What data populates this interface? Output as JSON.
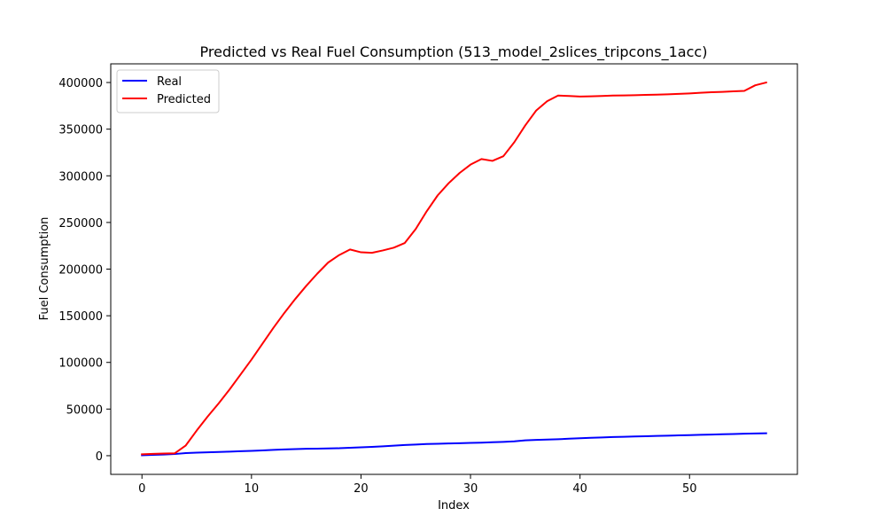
{
  "chart_data": {
    "type": "line",
    "title": "Predicted vs Real Fuel Consumption (513_model_2slices_tripcons_1acc)",
    "xlabel": "Index",
    "ylabel": "Fuel Consumption",
    "xlim": [
      -2.85,
      59.85
    ],
    "ylim": [
      -20000,
      420000
    ],
    "xticks": [
      0,
      10,
      20,
      30,
      40,
      50
    ],
    "yticks": [
      0,
      50000,
      100000,
      150000,
      200000,
      250000,
      300000,
      350000,
      400000
    ],
    "grid": false,
    "legend_position": "top-left",
    "x": [
      0,
      1,
      2,
      3,
      4,
      5,
      6,
      7,
      8,
      9,
      10,
      11,
      12,
      13,
      14,
      15,
      16,
      17,
      18,
      19,
      20,
      21,
      22,
      23,
      24,
      25,
      26,
      27,
      28,
      29,
      30,
      31,
      32,
      33,
      34,
      35,
      36,
      37,
      38,
      39,
      40,
      41,
      42,
      43,
      44,
      45,
      46,
      47,
      48,
      49,
      50,
      51,
      52,
      53,
      54,
      55,
      56,
      57
    ],
    "series": [
      {
        "name": "Real",
        "color": "#0000ff",
        "values": [
          500,
          900,
          1300,
          1800,
          2800,
          3300,
          3600,
          4000,
          4400,
          4800,
          5200,
          5700,
          6200,
          6700,
          7100,
          7400,
          7600,
          7800,
          8000,
          8500,
          9000,
          9500,
          10100,
          10800,
          11500,
          12000,
          12500,
          12800,
          13100,
          13400,
          13700,
          14000,
          14400,
          14800,
          15400,
          16500,
          16900,
          17300,
          17700,
          18200,
          18700,
          19200,
          19600,
          20000,
          20300,
          20600,
          20900,
          21200,
          21500,
          21800,
          22100,
          22400,
          22700,
          23000,
          23300,
          23600,
          23800,
          24000
        ]
      },
      {
        "name": "Predicted",
        "color": "#ff0000",
        "values": [
          1500,
          2000,
          2300,
          2600,
          11000,
          27000,
          42000,
          56000,
          71000,
          87000,
          103000,
          120000,
          137000,
          153000,
          168000,
          182000,
          195000,
          207000,
          215000,
          221000,
          218000,
          217500,
          220000,
          223000,
          228000,
          243000,
          262000,
          279000,
          292000,
          303000,
          312000,
          318000,
          316000,
          321000,
          336000,
          354000,
          370000,
          380000,
          386000,
          385500,
          385000,
          385200,
          385600,
          386000,
          386200,
          386400,
          386700,
          387000,
          387300,
          387800,
          388300,
          389000,
          389600,
          390000,
          390500,
          391000,
          397000,
          400000
        ]
      }
    ]
  }
}
